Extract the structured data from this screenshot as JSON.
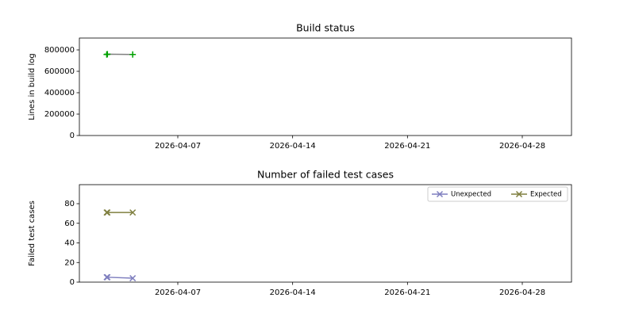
{
  "chart_data": [
    {
      "type": "line",
      "title": "Build status",
      "ylabel": "Lines in build log",
      "x": [
        "2026-04-02T16:00",
        "2026-04-02T17:00",
        "2026-04-04T06:00"
      ],
      "values": [
        757000,
        760000,
        757000
      ],
      "color": "#808080",
      "marker_color": "#00a000",
      "marker": "+",
      "xlim": [
        "2026-04-01",
        "2026-05-01"
      ],
      "xticks": [
        "2026-04-07",
        "2026-04-14",
        "2026-04-21",
        "2026-04-28"
      ],
      "ylim": [
        0,
        911000
      ],
      "yticks": [
        0,
        200000,
        400000,
        600000,
        800000
      ]
    },
    {
      "type": "line",
      "title": "Number of failed test cases",
      "ylabel": "Failed test cases",
      "x": [
        "2026-04-02T16:00",
        "2026-04-02T17:00",
        "2026-04-04T06:00"
      ],
      "series": [
        {
          "name": "Unexpected",
          "color": "#7f7fbf",
          "marker": "x",
          "values": [
            5,
            5,
            4
          ]
        },
        {
          "name": "Expected",
          "color": "#7f7f3f",
          "marker": "x",
          "values": [
            71,
            71,
            71
          ]
        }
      ],
      "xlim": [
        "2026-04-01",
        "2026-05-01"
      ],
      "xticks": [
        "2026-04-07",
        "2026-04-14",
        "2026-04-21",
        "2026-04-28"
      ],
      "ylim": [
        0,
        99.4
      ],
      "yticks": [
        0,
        20,
        40,
        60,
        80
      ],
      "legend": "upper right"
    }
  ]
}
